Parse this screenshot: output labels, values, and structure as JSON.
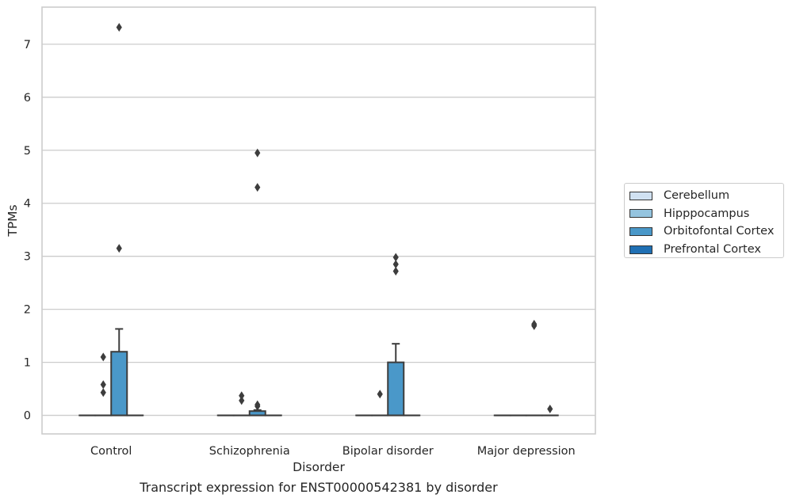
{
  "chart_data": {
    "type": "box",
    "title": "Transcript expression for ENST00000542381 by disorder",
    "xlabel": "Disorder",
    "ylabel": "TPMs",
    "ylim": [
      -0.35,
      7.7
    ],
    "yticks": [
      0,
      1,
      2,
      3,
      4,
      5,
      6,
      7
    ],
    "categories": [
      "Control",
      "Schizophrenia",
      "Bipolar disorder",
      "Major depression"
    ],
    "grid": "horizontal",
    "legend_position": "right",
    "series": [
      {
        "name": "Cerebellum",
        "color": "#d0e1f2",
        "boxes": [
          {
            "q1": 0,
            "median": 0,
            "q3": 0,
            "whisker_low": 0,
            "whisker_high": 0,
            "outliers": []
          },
          {
            "q1": 0,
            "median": 0,
            "q3": 0,
            "whisker_low": 0,
            "whisker_high": 0,
            "outliers": []
          },
          {
            "q1": 0,
            "median": 0,
            "q3": 0,
            "whisker_low": 0,
            "whisker_high": 0,
            "outliers": []
          },
          {
            "q1": 0,
            "median": 0,
            "q3": 0,
            "whisker_low": 0,
            "whisker_high": 0,
            "outliers": []
          }
        ]
      },
      {
        "name": "Hipppocampus",
        "color": "#94c4df",
        "boxes": [
          {
            "q1": 0,
            "median": 0,
            "q3": 0,
            "whisker_low": 0,
            "whisker_high": 0,
            "outliers": [
              0.43,
              0.58,
              1.1
            ]
          },
          {
            "q1": 0,
            "median": 0,
            "q3": 0,
            "whisker_low": 0,
            "whisker_high": 0,
            "outliers": [
              0.28,
              0.37
            ]
          },
          {
            "q1": 0,
            "median": 0,
            "q3": 0,
            "whisker_low": 0,
            "whisker_high": 0,
            "outliers": [
              0.4
            ]
          },
          {
            "q1": 0,
            "median": 0,
            "q3": 0,
            "whisker_low": 0,
            "whisker_high": 0,
            "outliers": []
          }
        ]
      },
      {
        "name": "Orbitofontal Cortex",
        "color": "#4a98c9",
        "boxes": [
          {
            "q1": 0,
            "median": 0,
            "q3": 1.2,
            "whisker_low": 0,
            "whisker_high": 1.63,
            "outliers": [
              3.15,
              7.32
            ]
          },
          {
            "q1": 0,
            "median": 0,
            "q3": 0.08,
            "whisker_low": 0,
            "whisker_high": 0.1,
            "outliers": [
              0.17,
              0.2,
              4.3,
              4.95
            ]
          },
          {
            "q1": 0,
            "median": 0,
            "q3": 1.0,
            "whisker_low": 0,
            "whisker_high": 1.35,
            "outliers": [
              2.72,
              2.85,
              2.98
            ]
          },
          {
            "q1": 0,
            "median": 0,
            "q3": 0,
            "whisker_low": 0,
            "whisker_high": 0,
            "outliers": [
              1.69,
              1.72
            ]
          }
        ]
      },
      {
        "name": "Prefrontal Cortex",
        "color": "#2070b4",
        "boxes": [
          {
            "q1": 0,
            "median": 0,
            "q3": 0,
            "whisker_low": 0,
            "whisker_high": 0,
            "outliers": []
          },
          {
            "q1": 0,
            "median": 0,
            "q3": 0,
            "whisker_low": 0,
            "whisker_high": 0,
            "outliers": []
          },
          {
            "q1": 0,
            "median": 0,
            "q3": 0,
            "whisker_low": 0,
            "whisker_high": 0,
            "outliers": []
          },
          {
            "q1": 0,
            "median": 0,
            "q3": 0,
            "whisker_low": 0,
            "whisker_high": 0,
            "outliers": [
              0.12
            ]
          }
        ]
      }
    ]
  }
}
